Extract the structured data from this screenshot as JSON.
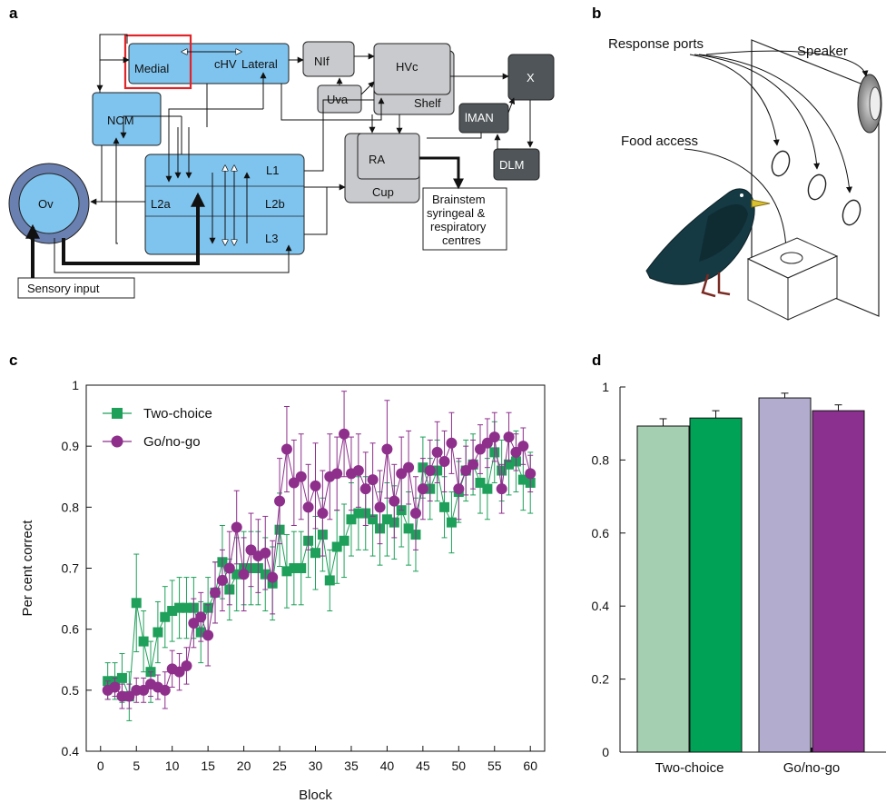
{
  "panels": {
    "a": {
      "label": "a",
      "nodes": {
        "medial": "Medial",
        "chv": "cHV",
        "lateral": "Lateral",
        "ncm": "NCM",
        "nif": "NIf",
        "uva": "Uva",
        "hvc": "HVc",
        "shelf": "Shelf",
        "x": "X",
        "lman": "lMAN",
        "dlm": "DLM",
        "ra": "RA",
        "cup": "Cup",
        "ov": "Ov",
        "l1": "L1",
        "l2a": "L2a",
        "l2b": "L2b",
        "l3": "L3",
        "brainstem": [
          "Brainstem",
          "syringeal &",
          "respiratory",
          "centres"
        ],
        "sensory": "Sensory input"
      },
      "colors": {
        "field_l": "#7fc4ee",
        "highlight": "#e0242a",
        "ov_outer": "#6a80b0",
        "grey": "#c9cacd",
        "dark": "#4f5558"
      }
    },
    "b": {
      "label": "b",
      "response_ports": "Response ports",
      "speaker": "Speaker",
      "food_access": "Food access"
    },
    "c": {
      "label": "c"
    },
    "d": {
      "label": "d"
    }
  },
  "chart_data": [
    {
      "type": "line",
      "panel": "c",
      "xlabel": "Block",
      "ylabel": "Per cent correct",
      "xlim": [
        -2,
        62
      ],
      "ylim": [
        0.4,
        1.0
      ],
      "xticks": [
        0,
        5,
        10,
        15,
        20,
        25,
        30,
        35,
        40,
        45,
        50,
        55,
        60
      ],
      "yticks": [
        0.4,
        0.5,
        0.6,
        0.7,
        0.8,
        0.9,
        1.0
      ],
      "ytick_labels": [
        "0.4",
        "0.5",
        "0.6",
        "0.7",
        "0.8",
        "0.9",
        "1"
      ],
      "legend_position": "top-left",
      "series": [
        {
          "name": "Two-choice",
          "color": "#1fa05a",
          "marker": "square",
          "values": [
            0.515,
            0.515,
            0.52,
            0.49,
            0.643,
            0.58,
            0.53,
            0.595,
            0.62,
            0.63,
            0.635,
            0.635,
            0.635,
            0.595,
            0.635,
            0.66,
            0.71,
            0.665,
            0.69,
            0.7,
            0.7,
            0.7,
            0.69,
            0.675,
            0.763,
            0.695,
            0.7,
            0.7,
            0.745,
            0.725,
            0.755,
            0.68,
            0.735,
            0.745,
            0.78,
            0.79,
            0.79,
            0.78,
            0.765,
            0.78,
            0.775,
            0.795,
            0.765,
            0.755,
            0.865,
            0.83,
            0.86,
            0.8,
            0.775,
            0.825,
            0.86,
            0.87,
            0.84,
            0.83,
            0.89,
            0.86,
            0.87,
            0.875,
            0.845,
            0.84
          ],
          "errors": [
            0.03,
            0.03,
            0.04,
            0.04,
            0.08,
            0.05,
            0.05,
            0.05,
            0.05,
            0.05,
            0.05,
            0.05,
            0.05,
            0.05,
            0.05,
            0.05,
            0.06,
            0.05,
            0.06,
            0.06,
            0.06,
            0.06,
            0.06,
            0.06,
            0.06,
            0.06,
            0.06,
            0.06,
            0.06,
            0.06,
            0.06,
            0.05,
            0.06,
            0.06,
            0.06,
            0.06,
            0.06,
            0.06,
            0.06,
            0.06,
            0.06,
            0.06,
            0.06,
            0.06,
            0.05,
            0.05,
            0.05,
            0.05,
            0.05,
            0.05,
            0.05,
            0.05,
            0.05,
            0.05,
            0.05,
            0.05,
            0.05,
            0.05,
            0.05,
            0.05
          ]
        },
        {
          "name": "Go/no-go",
          "color": "#8e2f8c",
          "marker": "circle",
          "values": [
            0.5,
            0.505,
            0.49,
            0.49,
            0.5,
            0.5,
            0.51,
            0.505,
            0.5,
            0.535,
            0.53,
            0.54,
            0.61,
            0.62,
            0.59,
            0.66,
            0.68,
            0.7,
            0.767,
            0.69,
            0.73,
            0.72,
            0.725,
            0.685,
            0.81,
            0.895,
            0.84,
            0.85,
            0.8,
            0.835,
            0.79,
            0.85,
            0.855,
            0.92,
            0.855,
            0.86,
            0.83,
            0.845,
            0.8,
            0.895,
            0.81,
            0.855,
            0.865,
            0.79,
            0.83,
            0.86,
            0.89,
            0.875,
            0.905,
            0.83,
            0.86,
            0.87,
            0.895,
            0.905,
            0.915,
            0.83,
            0.915,
            0.89,
            0.9,
            0.855
          ],
          "errors": [
            0.015,
            0.015,
            0.02,
            0.02,
            0.02,
            0.02,
            0.02,
            0.02,
            0.03,
            0.03,
            0.03,
            0.03,
            0.04,
            0.04,
            0.05,
            0.05,
            0.05,
            0.06,
            0.06,
            0.06,
            0.06,
            0.06,
            0.06,
            0.06,
            0.07,
            0.07,
            0.07,
            0.07,
            0.07,
            0.07,
            0.07,
            0.07,
            0.06,
            0.07,
            0.06,
            0.06,
            0.06,
            0.06,
            0.06,
            0.08,
            0.06,
            0.06,
            0.06,
            0.06,
            0.05,
            0.05,
            0.05,
            0.05,
            0.05,
            0.05,
            0.04,
            0.04,
            0.04,
            0.04,
            0.04,
            0.04,
            0.04,
            0.03,
            0.03,
            0.03
          ]
        }
      ]
    },
    {
      "type": "bar",
      "panel": "d",
      "ylim": [
        0,
        1.0
      ],
      "yticks": [
        0,
        0.2,
        0.4,
        0.6,
        0.8,
        1.0
      ],
      "ytick_labels": [
        "0",
        "0.2",
        "0.4",
        "0.6",
        "0.8",
        "1"
      ],
      "groups": [
        "Two-choice",
        "Go/no-go"
      ],
      "bars": [
        {
          "group": "Two-choice",
          "value": 0.893,
          "error": 0.02,
          "color": "#a5cfb1"
        },
        {
          "group": "Two-choice",
          "value": 0.915,
          "error": 0.02,
          "color": "#00a356"
        },
        {
          "group": "Go/no-go",
          "value": 0.97,
          "error": 0.013,
          "color": "#b2adcf"
        },
        {
          "group": "Go/no-go",
          "value": 0.935,
          "error": 0.016,
          "color": "#8c3090"
        }
      ]
    }
  ]
}
